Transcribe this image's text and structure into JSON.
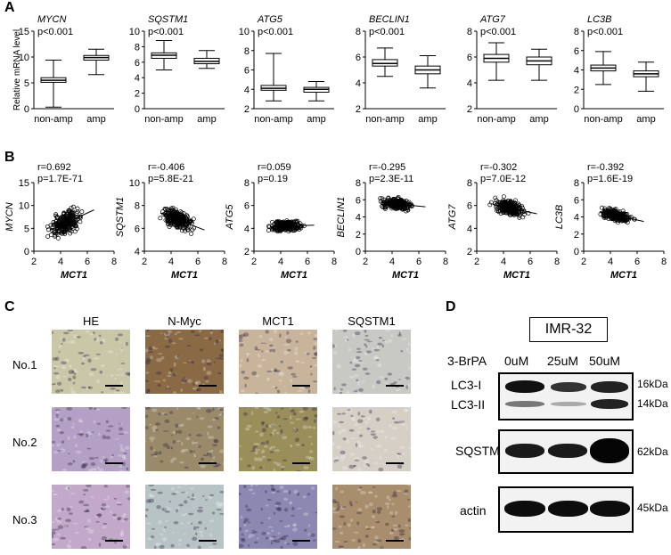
{
  "panels": {
    "a": "A",
    "b": "B",
    "c": "C",
    "d": "D"
  },
  "panelA": {
    "ylabel": "Relative mRNA level",
    "xticks": [
      "non-amp",
      "amp"
    ],
    "charts": [
      {
        "gene": "MYCN",
        "p": "p<0.001",
        "ylim": [
          0,
          15
        ],
        "yticks": [
          0,
          5,
          10,
          15
        ],
        "boxes": [
          {
            "group": "non-amp",
            "min": 0.3,
            "q1": 5.1,
            "median": 5.5,
            "q3": 6.0,
            "max": 9.4
          },
          {
            "group": "amp",
            "min": 6.6,
            "q1": 9.4,
            "median": 9.9,
            "q3": 10.3,
            "max": 11.5
          }
        ]
      },
      {
        "gene": "SQSTM1",
        "p": "p<0.001",
        "ylim": [
          0,
          10
        ],
        "yticks": [
          0,
          2,
          4,
          6,
          8,
          10
        ],
        "boxes": [
          {
            "group": "non-amp",
            "min": 5.0,
            "q1": 6.5,
            "median": 6.9,
            "q3": 7.2,
            "max": 8.8
          },
          {
            "group": "amp",
            "min": 5.2,
            "q1": 5.8,
            "median": 6.1,
            "q3": 6.5,
            "max": 7.5
          }
        ]
      },
      {
        "gene": "ATG5",
        "p": "p<0.001",
        "ylim": [
          2,
          10
        ],
        "yticks": [
          2,
          4,
          6,
          8,
          10
        ],
        "boxes": [
          {
            "group": "non-amp",
            "min": 2.8,
            "q1": 3.9,
            "median": 4.1,
            "q3": 4.4,
            "max": 7.7
          },
          {
            "group": "amp",
            "min": 2.8,
            "q1": 3.7,
            "median": 4.0,
            "q3": 4.2,
            "max": 4.8
          }
        ]
      },
      {
        "gene": "BECLIN1",
        "p": "p<0.001",
        "ylim": [
          2,
          8
        ],
        "yticks": [
          2,
          4,
          6,
          8
        ],
        "boxes": [
          {
            "group": "non-amp",
            "min": 4.5,
            "q1": 5.3,
            "median": 5.5,
            "q3": 5.8,
            "max": 6.7
          },
          {
            "group": "amp",
            "min": 3.6,
            "q1": 4.7,
            "median": 5.0,
            "q3": 5.3,
            "max": 6.1
          }
        ]
      },
      {
        "gene": "ATG7",
        "p": "p<0.001",
        "ylim": [
          2,
          8
        ],
        "yticks": [
          2,
          4,
          6,
          8
        ],
        "boxes": [
          {
            "group": "non-amp",
            "min": 4.2,
            "q1": 5.6,
            "median": 5.9,
            "q3": 6.2,
            "max": 7.1
          },
          {
            "group": "amp",
            "min": 4.2,
            "q1": 5.4,
            "median": 5.7,
            "q3": 6.0,
            "max": 6.6
          }
        ]
      },
      {
        "gene": "LC3B",
        "p": "p<0.001",
        "ylim": [
          0,
          8
        ],
        "yticks": [
          0,
          2,
          4,
          6,
          8
        ],
        "boxes": [
          {
            "group": "non-amp",
            "min": 2.5,
            "q1": 3.9,
            "median": 4.2,
            "q3": 4.5,
            "max": 5.9
          },
          {
            "group": "amp",
            "min": 1.8,
            "q1": 3.3,
            "median": 3.6,
            "q3": 3.9,
            "max": 4.8
          }
        ]
      }
    ]
  },
  "panelB": {
    "xlabel": "MCT1",
    "xlim": [
      2,
      8
    ],
    "xticks": [
      2,
      4,
      6,
      8
    ],
    "charts": [
      {
        "gene": "MYCN",
        "r": "r=0.692",
        "p": "p=1.7E-71",
        "ylim": [
          0,
          15
        ],
        "yticks": [
          0,
          5,
          10,
          15
        ],
        "slope": 1.35,
        "center": [
          4.4,
          6.2
        ],
        "spread": 1.6
      },
      {
        "gene": "SQSTM1",
        "r": "r=-0.406",
        "p": "p=5.8E-21",
        "ylim": [
          4,
          10
        ],
        "yticks": [
          4,
          6,
          8,
          10
        ],
        "slope": -0.45,
        "center": [
          4.4,
          6.8
        ],
        "spread": 0.55
      },
      {
        "gene": "ATG5",
        "r": "r=0.059",
        "p": "p=0.19",
        "ylim": [
          2,
          8
        ],
        "yticks": [
          2,
          4,
          6,
          8
        ],
        "slope": 0.04,
        "center": [
          4.4,
          4.2
        ],
        "spread": 0.35
      },
      {
        "gene": "BECLIN1",
        "r": "r=-0.295",
        "p": "p=2.3E-11",
        "ylim": [
          0,
          8
        ],
        "yticks": [
          0,
          2,
          4,
          6,
          8
        ],
        "slope": -0.15,
        "center": [
          4.4,
          5.5
        ],
        "spread": 0.4
      },
      {
        "gene": "ATG7",
        "r": "r=-0.302",
        "p": "p=7.0E-12",
        "ylim": [
          2,
          8
        ],
        "yticks": [
          2,
          4,
          6,
          8
        ],
        "slope": -0.25,
        "center": [
          4.4,
          5.8
        ],
        "spread": 0.45
      },
      {
        "gene": "LC3B",
        "r": "r=-0.392",
        "p": "p=1.6E-19",
        "ylim": [
          0,
          8
        ],
        "yticks": [
          0,
          2,
          4,
          6,
          8
        ],
        "slope": -0.35,
        "center": [
          4.4,
          4.2
        ],
        "spread": 0.45
      }
    ]
  },
  "panelC": {
    "columns": [
      "HE",
      "N-Myc",
      "MCT1",
      "SQSTM1"
    ],
    "rows": [
      "No.1",
      "No.2",
      "No.3"
    ],
    "tileColors": [
      [
        "#c9c7a8",
        "#8a6a45",
        "#c7b49a",
        "#c8c9c4"
      ],
      [
        "#b3a0c4",
        "#9a8a6a",
        "#9a8f5a",
        "#d5cfc6"
      ],
      [
        "#c2a9c9",
        "#b7c3c4",
        "#8c88b2",
        "#a88e6c"
      ]
    ]
  },
  "panelD": {
    "cellLine": "IMR-32",
    "treatment": "3-BrPA",
    "doses": [
      "0uM",
      "25uM",
      "50uM"
    ],
    "blots": [
      {
        "labels": [
          "LC3-I",
          "LC3-II"
        ],
        "kda": [
          "16kDa",
          "14kDa"
        ]
      },
      {
        "labels": [
          "SQSTM1"
        ],
        "kda": [
          "62kDa"
        ]
      },
      {
        "labels": [
          "actin"
        ],
        "kda": [
          "45kDa"
        ]
      }
    ]
  }
}
